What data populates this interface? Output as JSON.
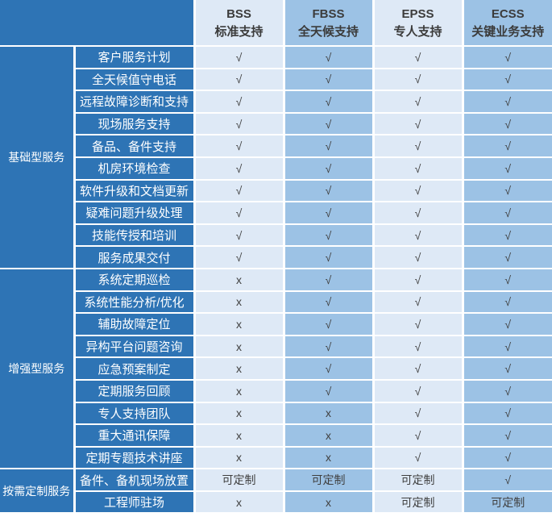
{
  "chart_data": {
    "type": "table",
    "columns": [
      {
        "code": "BSS",
        "label": "标准支持",
        "tone": "light"
      },
      {
        "code": "FBSS",
        "label": "全天候支持",
        "tone": "medium"
      },
      {
        "code": "EPSS",
        "label": "专人支持",
        "tone": "light"
      },
      {
        "code": "ECSS",
        "label": "关键业务支持",
        "tone": "medium"
      }
    ],
    "sections": [
      {
        "group": "基础型服务",
        "rows": [
          {
            "service": "客户服务计划",
            "values": [
              "√",
              "√",
              "√",
              "√"
            ]
          },
          {
            "service": "全天候值守电话",
            "values": [
              "√",
              "√",
              "√",
              "√"
            ]
          },
          {
            "service": "远程故障诊断和支持",
            "values": [
              "√",
              "√",
              "√",
              "√"
            ]
          },
          {
            "service": "现场服务支持",
            "values": [
              "√",
              "√",
              "√",
              "√"
            ]
          },
          {
            "service": "备品、备件支持",
            "values": [
              "√",
              "√",
              "√",
              "√"
            ]
          },
          {
            "service": "机房环境检查",
            "values": [
              "√",
              "√",
              "√",
              "√"
            ]
          },
          {
            "service": "软件升级和文档更新",
            "values": [
              "√",
              "√",
              "√",
              "√"
            ]
          },
          {
            "service": "疑难问题升级处理",
            "values": [
              "√",
              "√",
              "√",
              "√"
            ]
          },
          {
            "service": "技能传授和培训",
            "values": [
              "√",
              "√",
              "√",
              "√"
            ]
          },
          {
            "service": "服务成果交付",
            "values": [
              "√",
              "√",
              "√",
              "√"
            ]
          }
        ]
      },
      {
        "group": "增强型服务",
        "rows": [
          {
            "service": "系统定期巡检",
            "values": [
              "x",
              "√",
              "√",
              "√"
            ]
          },
          {
            "service": "系统性能分析/优化",
            "values": [
              "x",
              "√",
              "√",
              "√"
            ]
          },
          {
            "service": "辅助故障定位",
            "values": [
              "x",
              "√",
              "√",
              "√"
            ]
          },
          {
            "service": "异构平台问题咨询",
            "values": [
              "x",
              "√",
              "√",
              "√"
            ]
          },
          {
            "service": "应急预案制定",
            "values": [
              "x",
              "√",
              "√",
              "√"
            ]
          },
          {
            "service": "定期服务回顾",
            "values": [
              "x",
              "√",
              "√",
              "√"
            ]
          },
          {
            "service": "专人支持团队",
            "values": [
              "x",
              "x",
              "√",
              "√"
            ]
          },
          {
            "service": "重大通讯保障",
            "values": [
              "x",
              "x",
              "√",
              "√"
            ]
          },
          {
            "service": "定期专题技术讲座",
            "values": [
              "x",
              "x",
              "√",
              "√"
            ]
          }
        ]
      },
      {
        "group": "按需定制服务",
        "rows": [
          {
            "service": "备件、备机现场放置",
            "values": [
              "可定制",
              "可定制",
              "可定制",
              "√"
            ]
          },
          {
            "service": "工程师驻场",
            "values": [
              "x",
              "x",
              "可定制",
              "可定制"
            ]
          }
        ]
      }
    ],
    "symbols": {
      "included": "√",
      "not_included": "x",
      "customizable": "可定制"
    }
  },
  "colors": {
    "dark_blue": "#2E74B5",
    "light_blue": "#DEE9F6",
    "medium_blue": "#9CC2E5",
    "header_text": "#3B3B3B",
    "value_text": "#3F3F3F",
    "grid": "#FFFFFF"
  }
}
